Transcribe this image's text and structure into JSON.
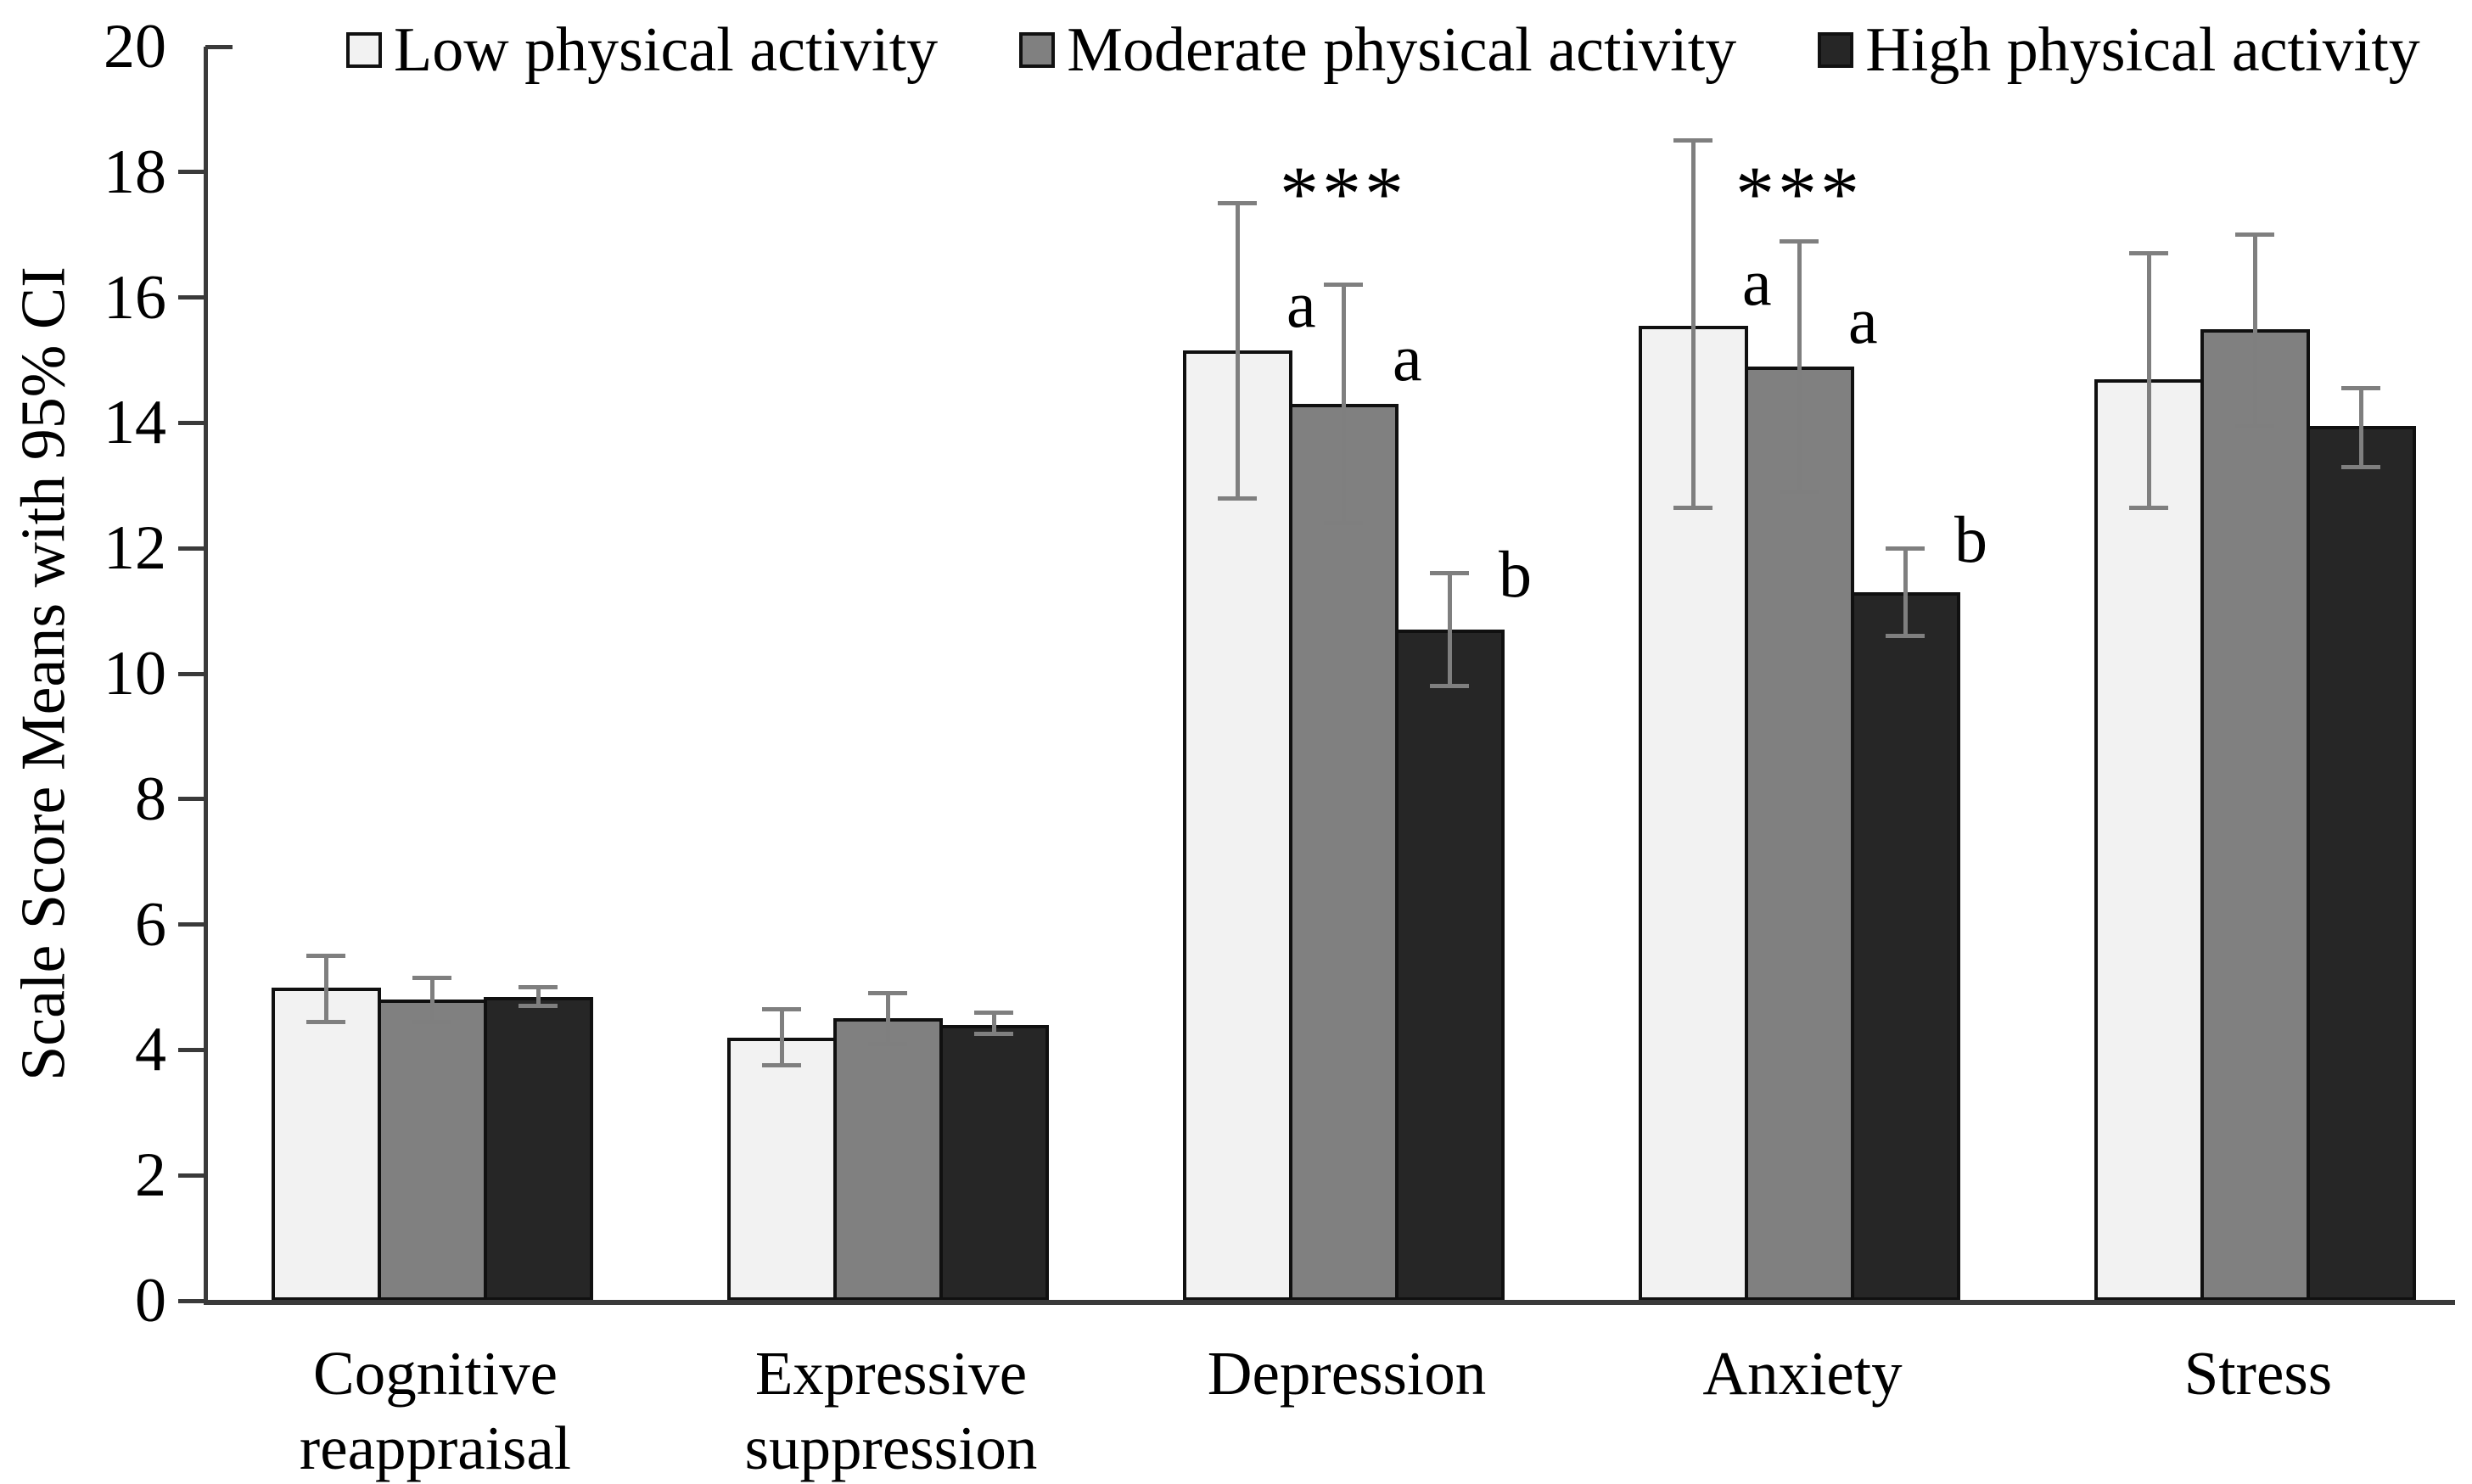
{
  "chart_data": {
    "type": "bar",
    "title": "",
    "xlabel": "",
    "ylabel": "Scale Score Means with 95% CI",
    "ylim": [
      0,
      20
    ],
    "yticks": [
      0,
      2,
      4,
      6,
      8,
      10,
      12,
      14,
      16,
      18,
      20
    ],
    "grid": false,
    "legend_position": "top",
    "error_bars": "95% CI",
    "categories": [
      "Cognitive reappraisal",
      "Expressive suppression",
      "Depression",
      "Anxiety",
      "Stress"
    ],
    "category_label_lines": [
      [
        "Cognitive",
        "reappraisal"
      ],
      [
        "Expressive",
        "suppression"
      ],
      [
        "Depression"
      ],
      [
        "Anxiety"
      ],
      [
        "Stress"
      ]
    ],
    "series": [
      {
        "name": "Low physical activity",
        "fill": "#f2f2f2",
        "values": [
          5.0,
          4.2,
          15.15,
          15.55,
          14.7
        ],
        "ci_low": [
          4.45,
          3.75,
          12.8,
          12.65,
          12.65
        ],
        "ci_high": [
          5.5,
          4.65,
          17.5,
          18.5,
          16.7
        ]
      },
      {
        "name": "Moderate physical activity",
        "fill": "#808080",
        "values": [
          4.8,
          4.5,
          14.3,
          14.9,
          15.5
        ],
        "ci_low": [
          4.45,
          4.1,
          12.4,
          12.9,
          13.95
        ],
        "ci_high": [
          5.15,
          4.9,
          16.2,
          16.9,
          17.0
        ]
      },
      {
        "name": "High physical activity",
        "fill": "#262626",
        "values": [
          4.85,
          4.4,
          10.7,
          11.3,
          13.95
        ],
        "ci_low": [
          4.7,
          4.25,
          9.8,
          10.6,
          13.3
        ],
        "ci_high": [
          5.0,
          4.6,
          11.6,
          12.0,
          14.55
        ]
      }
    ],
    "significance_stars": [
      {
        "category": "Depression",
        "text": "***",
        "y": 17.8
      },
      {
        "category": "Anxiety",
        "text": "***",
        "y": 17.8
      }
    ],
    "bar_letters": [
      {
        "category": "Depression",
        "series": 0,
        "text": "a",
        "y": 15.75
      },
      {
        "category": "Depression",
        "series": 1,
        "text": "a",
        "y": 14.9
      },
      {
        "category": "Depression",
        "series": 2,
        "text": "b",
        "y": 11.45
      },
      {
        "category": "Anxiety",
        "series": 0,
        "text": "a",
        "y": 16.1
      },
      {
        "category": "Anxiety",
        "series": 1,
        "text": "a",
        "y": 15.5
      },
      {
        "category": "Anxiety",
        "series": 2,
        "text": "b",
        "y": 12.0
      }
    ],
    "colors": {
      "error_bar": "#7f7f7f",
      "bar_border": "#101010",
      "axis": "#3a3a3a",
      "text": "#000000",
      "background": "#ffffff"
    }
  }
}
